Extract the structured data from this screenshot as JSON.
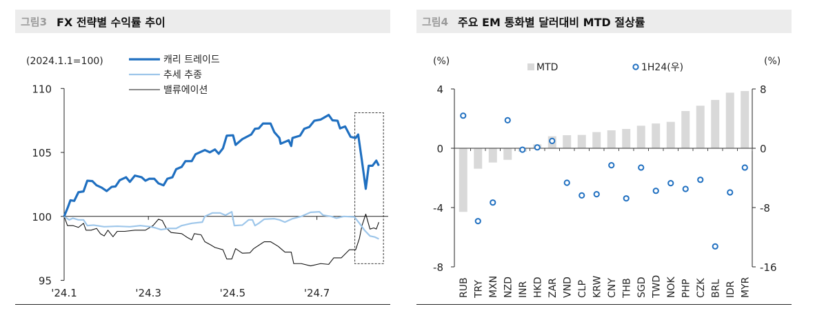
{
  "left_panel": {
    "fig_label": "그림3",
    "title": "FX 전략별 수익률 추이"
  },
  "right_panel": {
    "fig_label": "그림4",
    "title": "주요 EM 통화별 달러대비 MTD 절상률"
  },
  "chart_data": [
    {
      "type": "line",
      "unit_note": "(2024.1.1=100)",
      "ylim": [
        95,
        110
      ],
      "yticks": [
        "110",
        "105",
        "100",
        "95"
      ],
      "xticks": [
        {
          "label": "'24.1",
          "x": 1
        },
        {
          "label": "'24.3",
          "x": 3
        },
        {
          "label": "'24.5",
          "x": 5
        },
        {
          "label": "'24.7",
          "x": 7
        }
      ],
      "legend_position": "top",
      "highlight_box": {
        "x": [
          7.9,
          8.58
        ],
        "y": [
          96.3,
          108.1
        ],
        "style": "dashed"
      },
      "series": [
        {
          "name": "캐리 트레이드",
          "color": "#1f6fc0",
          "width": 3.2,
          "points": [
            [
              1.0,
              100.0
            ],
            [
              1.09,
              100.72
            ],
            [
              1.15,
              101.26
            ],
            [
              1.24,
              101.21
            ],
            [
              1.34,
              101.89
            ],
            [
              1.46,
              101.95
            ],
            [
              1.55,
              102.79
            ],
            [
              1.67,
              102.76
            ],
            [
              1.77,
              102.43
            ],
            [
              1.89,
              102.25
            ],
            [
              2.01,
              101.98
            ],
            [
              2.13,
              102.31
            ],
            [
              2.22,
              102.34
            ],
            [
              2.32,
              102.83
            ],
            [
              2.47,
              103.06
            ],
            [
              2.56,
              102.7
            ],
            [
              2.68,
              103.19
            ],
            [
              2.84,
              103.06
            ],
            [
              2.93,
              102.79
            ],
            [
              3.02,
              102.94
            ],
            [
              3.14,
              102.94
            ],
            [
              3.24,
              102.58
            ],
            [
              3.36,
              102.43
            ],
            [
              3.45,
              102.94
            ],
            [
              3.57,
              103.06
            ],
            [
              3.66,
              103.69
            ],
            [
              3.79,
              103.87
            ],
            [
              3.88,
              104.32
            ],
            [
              4.03,
              104.32
            ],
            [
              4.12,
              104.86
            ],
            [
              4.34,
              105.19
            ],
            [
              4.46,
              105.01
            ],
            [
              4.58,
              105.23
            ],
            [
              4.67,
              104.9
            ],
            [
              4.77,
              105.32
            ],
            [
              4.86,
              106.31
            ],
            [
              5.01,
              106.34
            ],
            [
              5.07,
              105.59
            ],
            [
              5.23,
              106.04
            ],
            [
              5.44,
              106.4
            ],
            [
              5.53,
              106.85
            ],
            [
              5.62,
              106.88
            ],
            [
              5.72,
              107.26
            ],
            [
              5.9,
              107.26
            ],
            [
              5.99,
              106.58
            ],
            [
              6.11,
              106.13
            ],
            [
              6.14,
              105.68
            ],
            [
              6.33,
              105.95
            ],
            [
              6.39,
              105.5
            ],
            [
              6.42,
              106.13
            ],
            [
              6.6,
              106.31
            ],
            [
              6.7,
              106.85
            ],
            [
              6.82,
              106.99
            ],
            [
              6.94,
              107.48
            ],
            [
              7.09,
              107.57
            ],
            [
              7.28,
              107.93
            ],
            [
              7.37,
              107.51
            ],
            [
              7.49,
              107.48
            ],
            [
              7.55,
              106.88
            ],
            [
              7.67,
              107.03
            ],
            [
              7.8,
              106.22
            ],
            [
              7.92,
              106.13
            ],
            [
              7.98,
              106.4
            ],
            [
              8.07,
              104.32
            ],
            [
              8.16,
              102.16
            ],
            [
              8.23,
              103.96
            ],
            [
              8.32,
              103.96
            ],
            [
              8.41,
              104.36
            ],
            [
              8.47,
              103.96
            ]
          ]
        },
        {
          "name": "추세 추종",
          "color": "#9dc6ea",
          "width": 2.2,
          "points": [
            [
              1.0,
              100.0
            ],
            [
              1.12,
              99.73
            ],
            [
              1.21,
              99.86
            ],
            [
              1.34,
              99.73
            ],
            [
              1.46,
              99.73
            ],
            [
              1.55,
              99.28
            ],
            [
              1.7,
              99.32
            ],
            [
              1.95,
              99.19
            ],
            [
              2.26,
              99.23
            ],
            [
              2.56,
              99.19
            ],
            [
              2.81,
              99.28
            ],
            [
              3.05,
              99.19
            ],
            [
              3.17,
              99.1
            ],
            [
              3.3,
              98.96
            ],
            [
              3.48,
              99.06
            ],
            [
              3.66,
              99.06
            ],
            [
              3.79,
              99.28
            ],
            [
              4.03,
              99.46
            ],
            [
              4.28,
              99.55
            ],
            [
              4.34,
              100.0
            ],
            [
              4.52,
              100.27
            ],
            [
              4.7,
              100.27
            ],
            [
              4.83,
              100.09
            ],
            [
              4.98,
              100.36
            ],
            [
              5.04,
              99.28
            ],
            [
              5.23,
              99.32
            ],
            [
              5.38,
              99.73
            ],
            [
              5.47,
              99.73
            ],
            [
              5.53,
              99.28
            ],
            [
              5.62,
              99.46
            ],
            [
              5.75,
              99.78
            ],
            [
              5.99,
              99.82
            ],
            [
              6.11,
              99.73
            ],
            [
              6.24,
              99.55
            ],
            [
              6.42,
              99.82
            ],
            [
              6.63,
              100.0
            ],
            [
              6.85,
              100.32
            ],
            [
              7.06,
              100.36
            ],
            [
              7.15,
              100.09
            ],
            [
              7.34,
              100.0
            ],
            [
              7.46,
              99.86
            ],
            [
              7.64,
              100.0
            ],
            [
              7.89,
              99.96
            ],
            [
              8.01,
              99.46
            ],
            [
              8.13,
              98.92
            ],
            [
              8.26,
              98.47
            ],
            [
              8.38,
              98.38
            ],
            [
              8.47,
              98.24
            ]
          ]
        },
        {
          "name": "밸류에이션",
          "color": "#111111",
          "width": 1.1,
          "points": [
            [
              1.0,
              100.0
            ],
            [
              1.08,
              99.28
            ],
            [
              1.21,
              99.28
            ],
            [
              1.34,
              99.14
            ],
            [
              1.46,
              99.46
            ],
            [
              1.52,
              98.92
            ],
            [
              1.64,
              98.92
            ],
            [
              1.77,
              99.06
            ],
            [
              1.86,
              98.65
            ],
            [
              1.95,
              98.47
            ],
            [
              2.04,
              98.92
            ],
            [
              2.16,
              98.41
            ],
            [
              2.26,
              98.83
            ],
            [
              2.44,
              98.83
            ],
            [
              2.68,
              98.92
            ],
            [
              2.93,
              98.92
            ],
            [
              3.11,
              99.28
            ],
            [
              3.24,
              99.78
            ],
            [
              3.33,
              99.68
            ],
            [
              3.42,
              99.1
            ],
            [
              3.54,
              98.74
            ],
            [
              3.79,
              98.65
            ],
            [
              3.91,
              98.38
            ],
            [
              4.03,
              98.16
            ],
            [
              4.09,
              98.65
            ],
            [
              4.25,
              98.56
            ],
            [
              4.34,
              98.02
            ],
            [
              4.49,
              97.75
            ],
            [
              4.58,
              97.57
            ],
            [
              4.77,
              97.39
            ],
            [
              4.86,
              96.67
            ],
            [
              4.98,
              96.67
            ],
            [
              5.07,
              97.48
            ],
            [
              5.23,
              97.12
            ],
            [
              5.41,
              97.15
            ],
            [
              5.5,
              97.48
            ],
            [
              5.75,
              98.02
            ],
            [
              5.9,
              98.02
            ],
            [
              6.08,
              97.66
            ],
            [
              6.24,
              97.21
            ],
            [
              6.39,
              97.21
            ],
            [
              6.45,
              96.31
            ],
            [
              6.63,
              96.31
            ],
            [
              6.85,
              96.13
            ],
            [
              7.09,
              96.31
            ],
            [
              7.28,
              96.25
            ],
            [
              7.4,
              96.76
            ],
            [
              7.58,
              96.76
            ],
            [
              7.77,
              97.39
            ],
            [
              7.92,
              97.39
            ],
            [
              8.01,
              98.29
            ],
            [
              8.07,
              99.28
            ],
            [
              8.16,
              100.18
            ],
            [
              8.26,
              99.01
            ],
            [
              8.35,
              99.1
            ],
            [
              8.41,
              99.01
            ],
            [
              8.47,
              99.55
            ]
          ]
        }
      ]
    },
    {
      "type": "bar+scatter",
      "left_unit": "(%)",
      "right_unit": "(%)",
      "ylim_left": [
        -8,
        4
      ],
      "ylim_right": [
        -16,
        8
      ],
      "yticks_left": [
        "4",
        "0",
        "-4",
        "-8"
      ],
      "yticks_right": [
        "8",
        "0",
        "-8",
        "-16"
      ],
      "legend_position": "top",
      "categories": [
        "RUB",
        "TRY",
        "MXN",
        "NZD",
        "INR",
        "HKD",
        "ZAR",
        "VND",
        "CLP",
        "KRW",
        "CNY",
        "THB",
        "SGD",
        "TWD",
        "NOK",
        "PHP",
        "CZK",
        "BRL",
        "IDR",
        "MYR"
      ],
      "series": [
        {
          "name": "MTD",
          "type": "bar",
          "axis": "left",
          "color": "#d9d9d9",
          "values": [
            -4.29,
            -1.38,
            -0.96,
            -0.78,
            -0.23,
            0.26,
            0.81,
            0.88,
            0.9,
            1.09,
            1.21,
            1.3,
            1.52,
            1.67,
            1.78,
            2.51,
            2.87,
            3.26,
            3.75,
            3.86
          ]
        },
        {
          "name": "1H24(우)",
          "type": "scatter",
          "axis": "right",
          "color": "#1f6fc0",
          "values": [
            4.4,
            -9.83,
            -7.32,
            3.78,
            -0.19,
            0.12,
            0.99,
            -4.65,
            -6.36,
            -6.2,
            -2.29,
            -6.76,
            -2.6,
            -5.74,
            -4.71,
            -5.49,
            -4.25,
            -13.24,
            -5.95,
            -2.6
          ]
        }
      ]
    }
  ]
}
